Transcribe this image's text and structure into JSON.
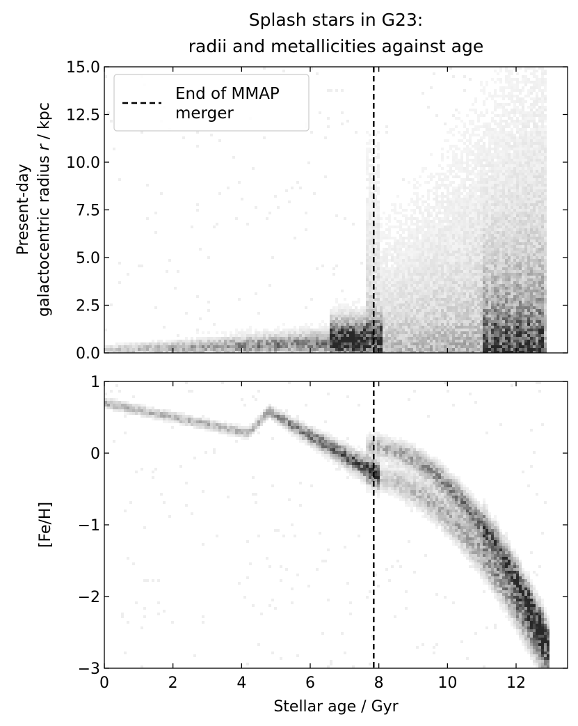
{
  "figure": {
    "title_line1": "Splash stars in G23:",
    "title_line2": "radii and metallicities against age"
  },
  "chart_data": [
    {
      "type": "heatmap",
      "panel": "top",
      "ylabel_line1": "Present-day",
      "ylabel_line2_prefix": "galactocentric radius ",
      "ylabel_line2_symbol": "r",
      "ylabel_line2_suffix": " / kpc",
      "xlabel": "",
      "xlim": [
        0,
        13.5
      ],
      "ylim": [
        0,
        15
      ],
      "yticks": [
        0.0,
        2.5,
        5.0,
        7.5,
        10.0,
        12.5,
        15.0
      ],
      "ytick_labels": [
        "0.0",
        "2.5",
        "5.0",
        "7.5",
        "10.0",
        "12.5",
        "15.0"
      ],
      "xticks": [
        0,
        2,
        4,
        6,
        8,
        10,
        12
      ],
      "colormap": "greys",
      "grid": false,
      "legend": {
        "placement": "top-left",
        "entry_line1": "End of MMAP",
        "entry_line2": "merger",
        "style": "dashed"
      },
      "vline": {
        "x": 7.85,
        "style": "dashed",
        "color": "#000000"
      }
    },
    {
      "type": "heatmap",
      "panel": "bottom",
      "ylabel": "[Fe/H]",
      "xlabel": "Stellar age / Gyr",
      "xlim": [
        0,
        13.5
      ],
      "ylim": [
        -3,
        1
      ],
      "yticks": [
        -3,
        -2,
        -1,
        0,
        1
      ],
      "ytick_labels": [
        "−3",
        "−2",
        "−1",
        "0",
        "1"
      ],
      "xticks": [
        0,
        2,
        4,
        6,
        8,
        10,
        12
      ],
      "xtick_labels": [
        "0",
        "2",
        "4",
        "6",
        "8",
        "10",
        "12"
      ],
      "colormap": "greys",
      "grid": false,
      "vline": {
        "x": 7.85,
        "style": "dashed",
        "color": "#000000"
      }
    }
  ]
}
